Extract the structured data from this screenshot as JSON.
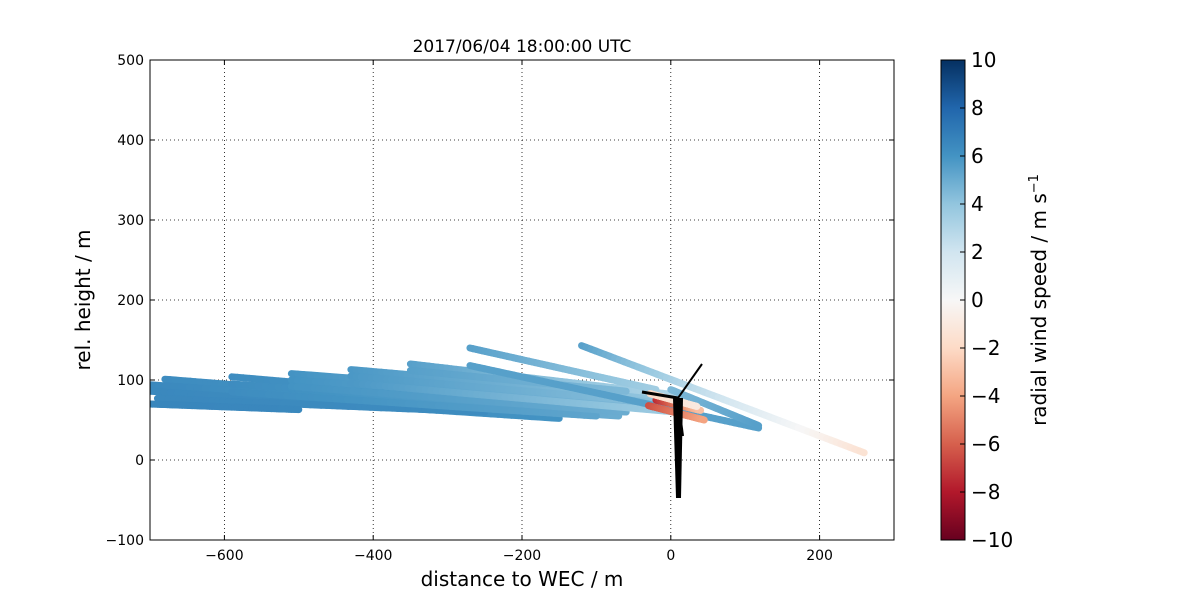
{
  "chart_data": {
    "type": "scatter",
    "title": "2017/06/04 18:00:00 UTC",
    "xlabel": "distance to WEC / m",
    "ylabel": "rel. height / m",
    "xlim": [
      -700,
      300
    ],
    "ylim": [
      -100,
      500
    ],
    "xticks": [
      -600,
      -400,
      -200,
      0,
      200
    ],
    "xtick_labels": [
      "−600",
      "−400",
      "−200",
      "0",
      "200"
    ],
    "yticks": [
      -100,
      0,
      100,
      200,
      300,
      400,
      500
    ],
    "ytick_labels": [
      "−100",
      "0",
      "100",
      "200",
      "300",
      "400",
      "500"
    ],
    "grid": true,
    "colorbar": {
      "label": "radial wind speed / m s⁻¹",
      "label_main": "radial wind speed / m s",
      "label_exp": "−1",
      "range": [
        -10,
        10
      ],
      "ticks": [
        10,
        8,
        6,
        4,
        2,
        0,
        -2,
        -4,
        -6,
        -8,
        -10
      ],
      "tick_labels": [
        "10",
        "8",
        "6",
        "4",
        "2",
        "0",
        "−2",
        "−4",
        "−6",
        "−8",
        "−10"
      ],
      "colormap": "RdBu"
    },
    "series": [
      {
        "x0": -680,
        "y0": 101,
        "x1": -270,
        "y1": 70,
        "values": [
          6.3,
          6.0
        ]
      },
      {
        "x0": -700,
        "y0": 94,
        "x1": -70,
        "y1": 55,
        "values": [
          6.5,
          5.0
        ]
      },
      {
        "x0": -700,
        "y0": 86,
        "x1": -150,
        "y1": 52,
        "values": [
          6.5,
          6.0
        ]
      },
      {
        "x0": -690,
        "y0": 77,
        "x1": -250,
        "y1": 60,
        "values": [
          6.5,
          6.3
        ]
      },
      {
        "x0": -700,
        "y0": 70,
        "x1": -500,
        "y1": 63,
        "values": [
          6.6,
          6.5
        ]
      },
      {
        "x0": -590,
        "y0": 104,
        "x1": -120,
        "y1": 66,
        "values": [
          6.3,
          5.5
        ]
      },
      {
        "x0": -590,
        "y0": 95,
        "x1": -60,
        "y1": 60,
        "values": [
          6.3,
          5.0
        ]
      },
      {
        "x0": -590,
        "y0": 85,
        "x1": -100,
        "y1": 55,
        "values": [
          6.3,
          5.3
        ]
      },
      {
        "x0": -510,
        "y0": 108,
        "x1": 0,
        "y1": 72,
        "values": [
          6.0,
          4.0
        ]
      },
      {
        "x0": -510,
        "y0": 100,
        "x1": -30,
        "y1": 70,
        "values": [
          6.0,
          4.5
        ]
      },
      {
        "x0": -510,
        "y0": 92,
        "x1": -60,
        "y1": 60,
        "values": [
          6.0,
          5.0
        ]
      },
      {
        "x0": -430,
        "y0": 113,
        "x1": -20,
        "y1": 80,
        "values": [
          5.8,
          4.0
        ]
      },
      {
        "x0": -430,
        "y0": 105,
        "x1": -20,
        "y1": 72,
        "values": [
          5.8,
          4.2
        ]
      },
      {
        "x0": -430,
        "y0": 96,
        "x1": 30,
        "y1": 58,
        "values": [
          5.8,
          3.5
        ]
      },
      {
        "x0": -350,
        "y0": 120,
        "x1": 20,
        "y1": 80,
        "values": [
          5.5,
          3.0
        ]
      },
      {
        "x0": -350,
        "y0": 112,
        "x1": -60,
        "y1": 86,
        "values": [
          5.5,
          4.5
        ]
      },
      {
        "x0": -270,
        "y0": 140,
        "x1": -20,
        "y1": 88,
        "values": [
          5.5,
          3.5
        ]
      },
      {
        "x0": -270,
        "y0": 118,
        "x1": 118,
        "y1": 40,
        "values": [
          5.5,
          5.5
        ]
      },
      {
        "x0": -120,
        "y0": 143,
        "x1": 260,
        "y1": 9,
        "values": [
          5.5,
          -1.5
        ]
      },
      {
        "x0": 0,
        "y0": 88,
        "x1": 118,
        "y1": 43,
        "values": [
          4.5,
          5.5
        ]
      },
      {
        "x0": -30,
        "y0": 68,
        "x1": 45,
        "y1": 50,
        "values": [
          -6.5,
          -4.0
        ]
      },
      {
        "x0": -20,
        "y0": 75,
        "x1": 40,
        "y1": 62,
        "values": [
          -7.5,
          -3.0
        ]
      },
      {
        "x0": -28,
        "y0": 83,
        "x1": 35,
        "y1": 67,
        "values": [
          -2.0,
          -1.0
        ]
      }
    ]
  }
}
